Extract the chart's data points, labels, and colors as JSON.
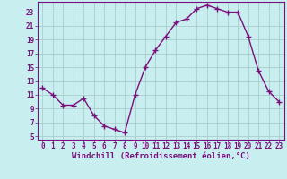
{
  "x": [
    0,
    1,
    2,
    3,
    4,
    5,
    6,
    7,
    8,
    9,
    10,
    11,
    12,
    13,
    14,
    15,
    16,
    17,
    18,
    19,
    20,
    21,
    22,
    23
  ],
  "y": [
    12,
    11,
    9.5,
    9.5,
    10.5,
    8,
    6.5,
    6,
    5.5,
    11,
    15,
    17.5,
    19.5,
    21.5,
    22,
    23.5,
    24,
    23.5,
    23,
    23,
    19.5,
    14.5,
    11.5,
    10
  ],
  "line_color": "#7B0F7B",
  "marker": "+",
  "bg_color": "#c8eef0",
  "grid_color": "#aacccc",
  "xlabel": "Windchill (Refroidissement éolien,°C)",
  "xlim": [
    -0.5,
    23.5
  ],
  "ylim": [
    4.5,
    24.5
  ],
  "yticks": [
    5,
    7,
    9,
    11,
    13,
    15,
    17,
    19,
    21,
    23
  ],
  "xticks": [
    0,
    1,
    2,
    3,
    4,
    5,
    6,
    7,
    8,
    9,
    10,
    11,
    12,
    13,
    14,
    15,
    16,
    17,
    18,
    19,
    20,
    21,
    22,
    23
  ],
  "tick_color": "#7B0F7B",
  "xlabel_color": "#7B0F7B",
  "xlabel_fontsize": 6.5,
  "tick_fontsize": 5.5,
  "linewidth": 1.0,
  "markersize": 5
}
